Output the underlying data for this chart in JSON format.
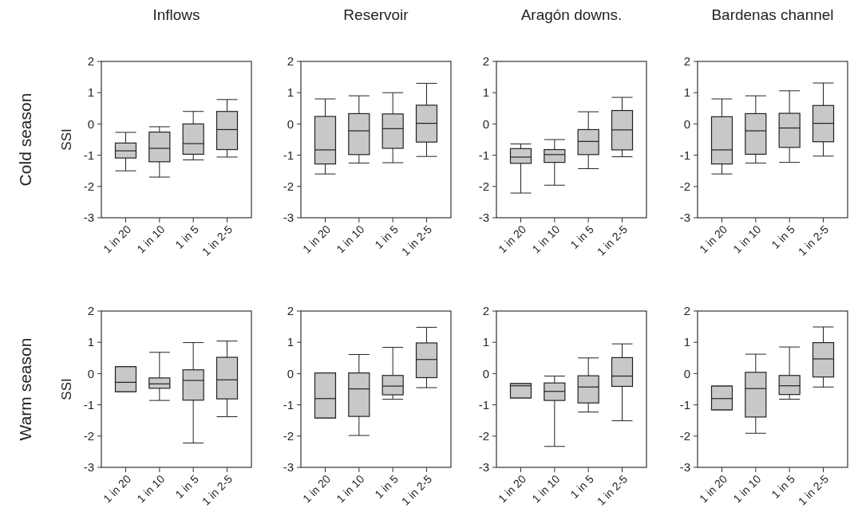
{
  "chart_data": [
    {
      "type": "box",
      "title": "Inflows",
      "ylabel": "SSI",
      "annotations": [
        "Cold season"
      ],
      "categories": [
        "1 in 20",
        "1 in 10",
        "1 in 5",
        "1 in 2-5"
      ],
      "color": "#c8c8c8",
      "ylim": [
        -3,
        2
      ],
      "yticks": [
        -3,
        -2,
        -1,
        0,
        1,
        2
      ],
      "boxes": [
        {
          "low": -1.5,
          "q1": -1.09,
          "median": -0.86,
          "q3": -0.61,
          "high": -0.27
        },
        {
          "low": -1.7,
          "q1": -1.21,
          "median": -0.78,
          "q3": -0.26,
          "high": -0.09
        },
        {
          "low": -1.15,
          "q1": -0.97,
          "median": -0.63,
          "q3": 0,
          "high": 0.4
        },
        {
          "low": -1.06,
          "q1": -0.82,
          "median": -0.18,
          "q3": 0.4,
          "high": 0.78
        }
      ]
    },
    {
      "type": "box",
      "title": "Reservoir",
      "categories": [
        "1 in 20",
        "1 in 10",
        "1 in 5",
        "1 in 2-5"
      ],
      "color": "#c8c8c8",
      "ylim": [
        -3,
        2
      ],
      "yticks": [
        -3,
        -2,
        -1,
        0,
        1,
        2
      ],
      "boxes": [
        {
          "low": -1.6,
          "q1": -1.28,
          "median": -0.83,
          "q3": 0.24,
          "high": 0.8
        },
        {
          "low": -1.25,
          "q1": -0.98,
          "median": -0.22,
          "q3": 0.33,
          "high": 0.9
        },
        {
          "low": -1.24,
          "q1": -0.78,
          "median": -0.15,
          "q3": 0.32,
          "high": 1.0
        },
        {
          "low": -1.04,
          "q1": -0.58,
          "median": 0.02,
          "q3": 0.6,
          "high": 1.3
        }
      ]
    },
    {
      "type": "box",
      "title": "Aragón downs.",
      "categories": [
        "1 in 20",
        "1 in 10",
        "1 in 5",
        "1 in 2-5"
      ],
      "color": "#c8c8c8",
      "ylim": [
        -3,
        2
      ],
      "yticks": [
        -3,
        -2,
        -1,
        0,
        1,
        2
      ],
      "boxes": [
        {
          "low": -2.21,
          "q1": -1.26,
          "median": -1.06,
          "q3": -0.79,
          "high": -0.64
        },
        {
          "low": -1.96,
          "q1": -1.23,
          "median": -0.98,
          "q3": -0.82,
          "high": -0.5
        },
        {
          "low": -1.43,
          "q1": -0.98,
          "median": -0.56,
          "q3": -0.18,
          "high": 0.39
        },
        {
          "low": -1.05,
          "q1": -0.83,
          "median": -0.19,
          "q3": 0.43,
          "high": 0.85
        }
      ]
    },
    {
      "type": "box",
      "title": "Bardenas channel",
      "categories": [
        "1 in 20",
        "1 in 10",
        "1 in 5",
        "1 in 2-5"
      ],
      "color": "#c8c8c8",
      "ylim": [
        -3,
        2
      ],
      "yticks": [
        -3,
        -2,
        -1,
        0,
        1,
        2
      ],
      "boxes": [
        {
          "low": -1.6,
          "q1": -1.28,
          "median": -0.83,
          "q3": 0.23,
          "high": 0.8
        },
        {
          "low": -1.25,
          "q1": -0.97,
          "median": -0.22,
          "q3": 0.33,
          "high": 0.9
        },
        {
          "low": -1.23,
          "q1": -0.75,
          "median": -0.13,
          "q3": 0.34,
          "high": 1.06
        },
        {
          "low": -1.03,
          "q1": -0.57,
          "median": 0.02,
          "q3": 0.59,
          "high": 1.31
        }
      ]
    },
    {
      "type": "box",
      "ylabel": "SSI",
      "annotations": [
        "Warm season"
      ],
      "categories": [
        "1 in 20",
        "1 in 10",
        "1 in 5",
        "1 in 2-5"
      ],
      "color": "#c8c8c8",
      "ylim": [
        -3,
        2
      ],
      "yticks": [
        -3,
        -2,
        -1,
        0,
        1,
        2
      ],
      "boxes": [
        {
          "low": -0.58,
          "q1": -0.58,
          "median": -0.28,
          "q3": 0.22,
          "high": 0.22
        },
        {
          "low": -0.86,
          "q1": -0.47,
          "median": -0.33,
          "q3": -0.14,
          "high": 0.68
        },
        {
          "low": -2.22,
          "q1": -0.85,
          "median": -0.22,
          "q3": 0.12,
          "high": 0.99
        },
        {
          "low": -1.38,
          "q1": -0.81,
          "median": -0.2,
          "q3": 0.52,
          "high": 1.04
        }
      ]
    },
    {
      "type": "box",
      "categories": [
        "1 in 20",
        "1 in 10",
        "1 in 5",
        "1 in 2-5"
      ],
      "color": "#c8c8c8",
      "ylim": [
        -3,
        2
      ],
      "yticks": [
        -3,
        -2,
        -1,
        0,
        1,
        2
      ],
      "boxes": [
        {
          "low": -1.42,
          "q1": -1.42,
          "median": -0.8,
          "q3": 0.02,
          "high": 0.02
        },
        {
          "low": -1.98,
          "q1": -1.37,
          "median": -0.49,
          "q3": 0.02,
          "high": 0.61
        },
        {
          "low": -0.82,
          "q1": -0.68,
          "median": -0.4,
          "q3": -0.06,
          "high": 0.84
        },
        {
          "low": -0.45,
          "q1": -0.13,
          "median": 0.45,
          "q3": 0.98,
          "high": 1.48
        }
      ]
    },
    {
      "type": "box",
      "categories": [
        "1 in 20",
        "1 in 10",
        "1 in 5",
        "1 in 2-5"
      ],
      "color": "#c8c8c8",
      "ylim": [
        -3,
        2
      ],
      "yticks": [
        -3,
        -2,
        -1,
        0,
        1,
        2
      ],
      "boxes": [
        {
          "low": -0.78,
          "q1": -0.78,
          "median": -0.39,
          "q3": -0.32,
          "high": -0.32
        },
        {
          "low": -2.33,
          "q1": -0.86,
          "median": -0.57,
          "q3": -0.3,
          "high": -0.08
        },
        {
          "low": -1.23,
          "q1": -0.94,
          "median": -0.43,
          "q3": -0.07,
          "high": 0.5
        },
        {
          "low": -1.51,
          "q1": -0.41,
          "median": -0.08,
          "q3": 0.51,
          "high": 0.95
        }
      ]
    },
    {
      "type": "box",
      "categories": [
        "1 in 20",
        "1 in 10",
        "1 in 5",
        "1 in 2-5"
      ],
      "color": "#c8c8c8",
      "ylim": [
        -3,
        2
      ],
      "yticks": [
        -3,
        -2,
        -1,
        0,
        1,
        2
      ],
      "boxes": [
        {
          "low": -1.16,
          "q1": -1.16,
          "median": -0.8,
          "q3": -0.4,
          "high": -0.4
        },
        {
          "low": -1.91,
          "q1": -1.39,
          "median": -0.48,
          "q3": 0.04,
          "high": 0.62
        },
        {
          "low": -0.82,
          "q1": -0.67,
          "median": -0.39,
          "q3": -0.06,
          "high": 0.85
        },
        {
          "low": -0.43,
          "q1": -0.11,
          "median": 0.47,
          "q3": 0.99,
          "high": 1.49
        }
      ]
    }
  ]
}
